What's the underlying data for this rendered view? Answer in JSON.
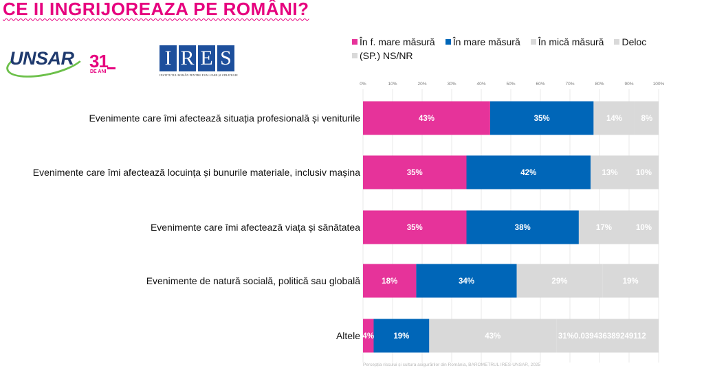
{
  "header": {
    "title": "CE II INGRIJOREAZA PE ROMÂNI?"
  },
  "logos": {
    "unsar": {
      "name": "UNSAR",
      "years": "31",
      "years_label": "DE ANI"
    },
    "ires": {
      "letters": [
        "I",
        "R",
        "E",
        "S"
      ],
      "subtitle": "INSTITUTUL ROMÂN PENTRU EVALUARE ȘI STRATEGIE"
    }
  },
  "legend": [
    {
      "label": "În f. mare măsură",
      "color": "#e6339a"
    },
    {
      "label": "În mare măsură",
      "color": "#0066b8"
    },
    {
      "label": "În mică măsură",
      "color": "#d9d9d9"
    },
    {
      "label": "Deloc",
      "color": "#d9d9d9"
    },
    {
      "label": "(SP.) NS/NR",
      "color": "#d9d9d9"
    }
  ],
  "chart_data": {
    "type": "bar",
    "orientation": "horizontal",
    "stacked": true,
    "xlim": [
      0,
      100
    ],
    "x_ticks": [
      "0%",
      "10%",
      "20%",
      "30%",
      "40%",
      "50%",
      "60%",
      "70%",
      "80%",
      "90%",
      "100%"
    ],
    "grid": true,
    "legend_position": "top",
    "categories": [
      "Evenimente care îmi afectează situația profesională și veniturile",
      "Evenimente care îmi afectează locuința și bunurile materiale, inclusiv mașina",
      "Evenimente care îmi afectează viața și sănătatea",
      "Evenimente de natură socială, politică sau globală",
      "Altele"
    ],
    "series": [
      {
        "name": "În f. mare măsură",
        "color": "#e6339a",
        "label_color": "#ffffff",
        "values": [
          43,
          35,
          35,
          18,
          3.6
        ],
        "labels": [
          "43%",
          "35%",
          "35%",
          "18%",
          "4%"
        ]
      },
      {
        "name": "În mare măsură",
        "color": "#0066b8",
        "label_color": "#ffffff",
        "values": [
          35,
          42,
          38,
          34,
          18.8
        ],
        "labels": [
          "35%",
          "42%",
          "38%",
          "34%",
          "19%"
        ]
      },
      {
        "name": "În mică măsură",
        "color": "#d9d9d9",
        "label_color": "#ffffff",
        "values": [
          14,
          13,
          17,
          29,
          43
        ],
        "labels": [
          "14%",
          "13%",
          "17%",
          "29%",
          "43%"
        ]
      },
      {
        "name": "Deloc",
        "color": "#d9d9d9",
        "label_color": "#ffffff",
        "values": [
          8,
          10,
          10,
          19,
          31
        ],
        "labels": [
          "8%",
          "10%",
          "10%",
          "19%",
          "31%0.039436389249112"
        ]
      },
      {
        "name": "(SP.) NS/NR",
        "color": "#d9d9d9",
        "label_color": "#ffffff",
        "values": [
          0,
          0,
          0,
          0,
          3.6
        ],
        "labels": [
          "",
          "",
          "",
          "",
          ""
        ]
      }
    ]
  },
  "footnote": "Percepția riscului și cultura asigurărilor din România, BAROMETRUL IRES-UNSAR, 2025"
}
